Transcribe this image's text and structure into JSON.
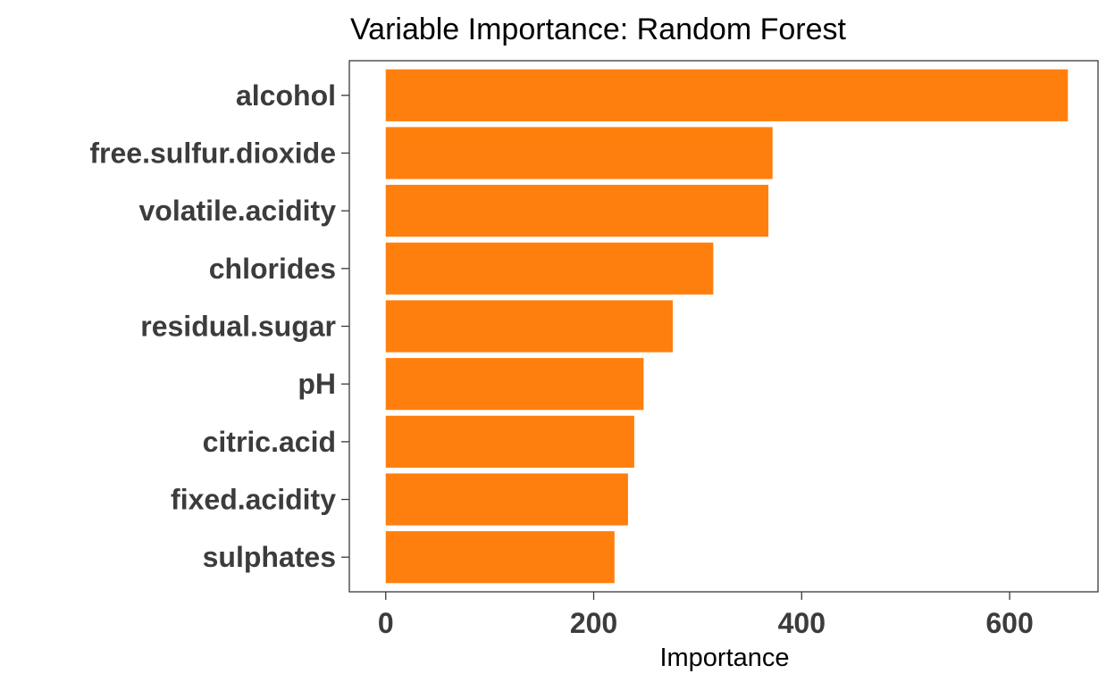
{
  "chart_data": {
    "type": "bar",
    "orientation": "horizontal",
    "title": "Variable Importance: Random Forest",
    "xlabel": "Importance",
    "ylabel": "",
    "categories": [
      "alcohol",
      "free.sulfur.dioxide",
      "volatile.acidity",
      "chlorides",
      "residual.sugar",
      "pH",
      "citric.acid",
      "fixed.acidity",
      "sulphates"
    ],
    "values": [
      656,
      372,
      368,
      315,
      276,
      248,
      239,
      233,
      220
    ],
    "xlim": [
      -35,
      685
    ],
    "xticks": [
      0,
      200,
      400,
      600
    ],
    "xtick_labels": [
      "0",
      "200",
      "400",
      "600"
    ],
    "grid": false,
    "legend": "none",
    "bar_color": "#FF7F0E"
  }
}
